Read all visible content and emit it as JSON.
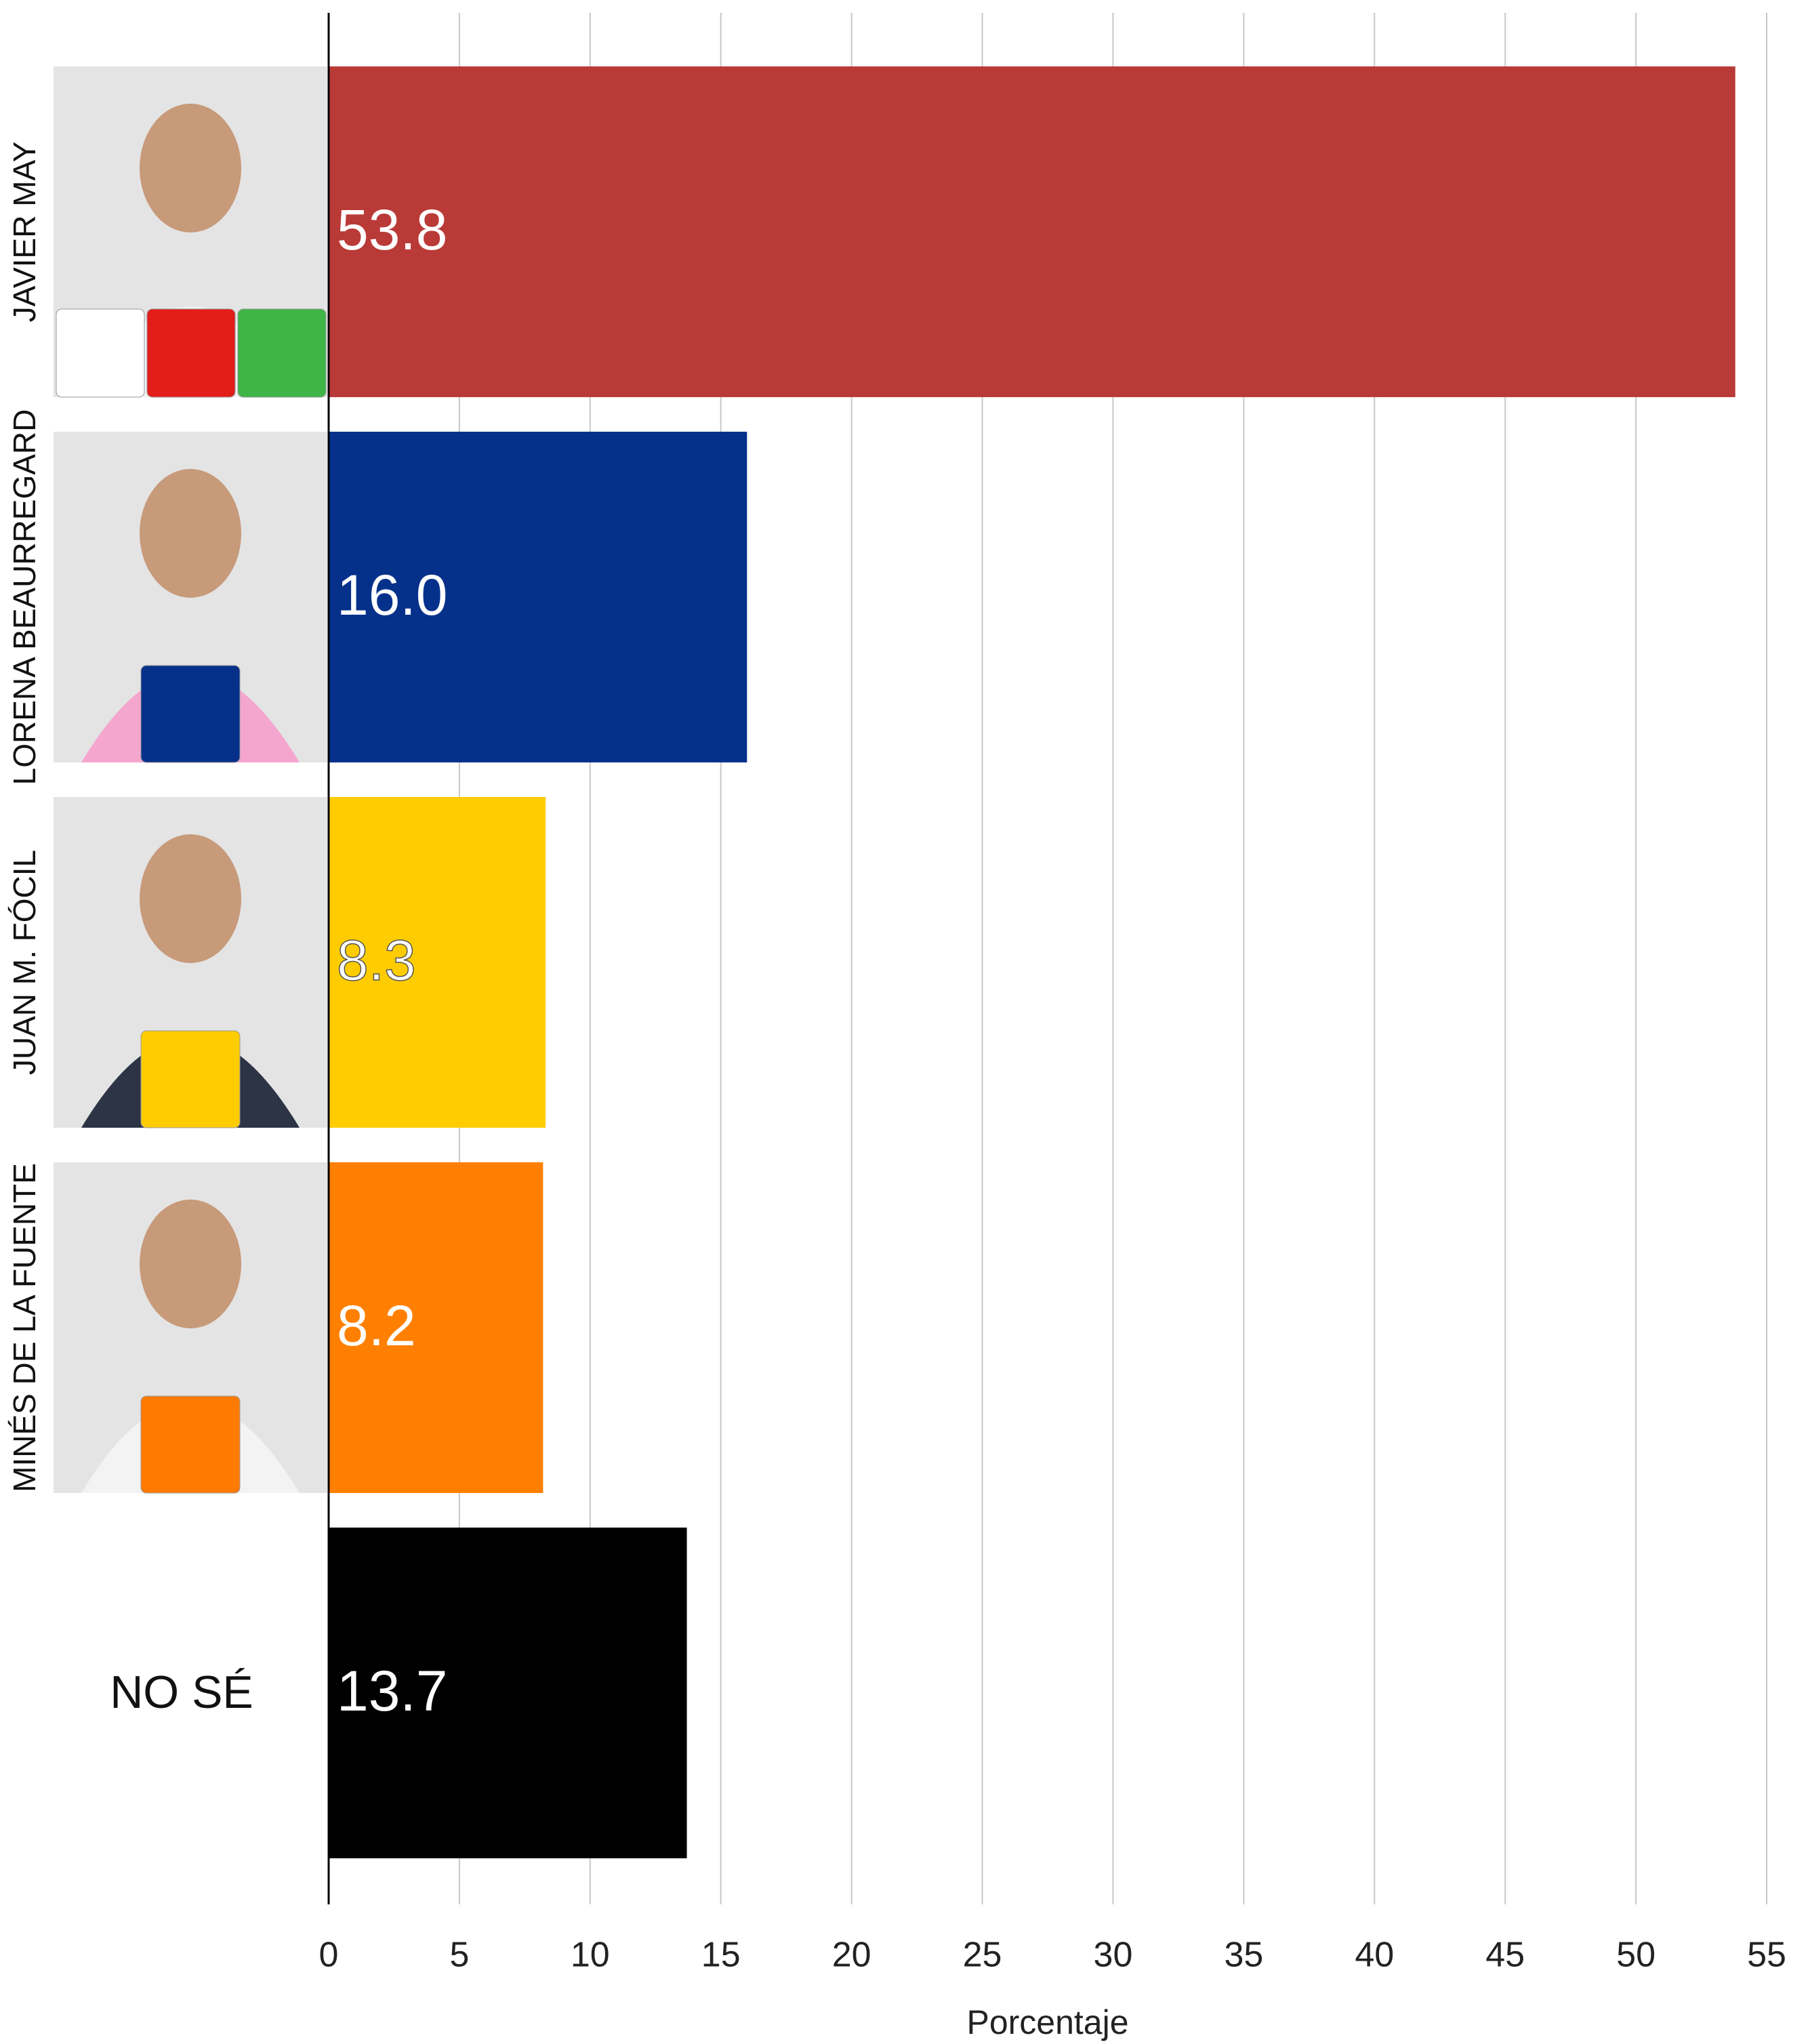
{
  "chart_data": {
    "type": "bar",
    "orientation": "horizontal",
    "categories": [
      "JAVIER MAY",
      "LORENA BEAURREGARD",
      "JUAN M. FÓCIL",
      "MINÉS DE LA FUENTE",
      "NO SÉ"
    ],
    "values": [
      53.8,
      16.0,
      8.3,
      8.2,
      13.7
    ],
    "value_labels": [
      "53.8",
      "16.0",
      "8.3",
      "8.2",
      "13.7"
    ],
    "colors": [
      "#b93a37",
      "#06318b",
      "#ffcc00",
      "#ff8000",
      "#000000"
    ],
    "xlabel": "Porcentaje",
    "xlim": [
      0,
      55
    ],
    "xticks": [
      0,
      5,
      10,
      15,
      20,
      25,
      30,
      35,
      40,
      45,
      50,
      55
    ],
    "grid": true
  }
}
